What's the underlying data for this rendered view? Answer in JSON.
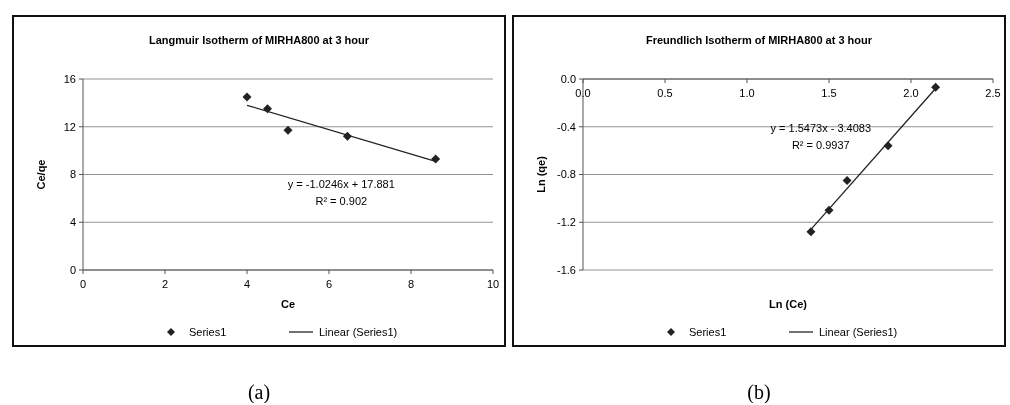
{
  "chart_data": [
    {
      "type": "scatter",
      "title": "Langmuir Isotherm of MIRHA800 at 3 hour",
      "xlabel": "Ce",
      "ylabel": "Ce/qe",
      "xlim": [
        0,
        10
      ],
      "xticks": [
        0,
        2,
        4,
        6,
        8,
        10
      ],
      "ylim": [
        0,
        16
      ],
      "yticks": [
        0,
        4,
        8,
        12,
        16
      ],
      "grid": "y",
      "legend": "bottom",
      "series": [
        {
          "name": "Series1",
          "type": "scatter",
          "marker": "diamond",
          "color": "#222222",
          "x": [
            4.0,
            4.5,
            5.0,
            6.45,
            8.6
          ],
          "values": [
            14.5,
            13.5,
            11.7,
            11.2,
            9.3
          ]
        },
        {
          "name": "Linear (Series1)",
          "type": "line",
          "color": "#222222",
          "x": [
            4.0,
            8.6
          ],
          "values": [
            13.8,
            9.1
          ]
        }
      ],
      "annotations": [
        "y = -1.0246x + 17.881",
        "R² = 0.902",
        "(a)"
      ]
    },
    {
      "type": "scatter",
      "title": "Freundlich Isotherm of MIRHA800 at 3 hour",
      "xlabel": "Ln (Ce)",
      "ylabel": "Ln (qe)",
      "xlim": [
        0,
        2.5
      ],
      "xticks": [
        {
          "value": 0,
          "label": "0.0"
        },
        {
          "value": 0.5,
          "label": "0.5"
        },
        {
          "value": 1,
          "label": "1.0"
        },
        {
          "value": 1.5,
          "label": "1.5"
        },
        {
          "value": 2,
          "label": "2.0"
        },
        {
          "value": 2.5,
          "label": "2.5"
        }
      ],
      "ylim": [
        -1.6,
        0
      ],
      "yticks": [
        {
          "value": -1.6,
          "label": "-1.6"
        },
        {
          "value": -1.2,
          "label": "-1.2"
        },
        {
          "value": -0.8,
          "label": "-0.8"
        },
        {
          "value": -0.4,
          "label": "-0.4"
        },
        {
          "value": 0,
          "label": "0.0"
        }
      ],
      "grid": "y",
      "legend": "bottom",
      "series": [
        {
          "name": "Series1",
          "type": "scatter",
          "marker": "diamond",
          "color": "#222222",
          "x": [
            1.39,
            1.5,
            1.61,
            1.86,
            2.15
          ],
          "values": [
            -1.28,
            -1.1,
            -0.85,
            -0.56,
            -0.07
          ]
        },
        {
          "name": "Linear (Series1)",
          "type": "line",
          "color": "#222222",
          "x": [
            1.39,
            2.15
          ],
          "values": [
            -1.26,
            -0.08
          ]
        }
      ],
      "annotations": [
        "y = 1.5473x - 3.4083",
        "R² = 0.9937",
        "(b)"
      ]
    }
  ]
}
